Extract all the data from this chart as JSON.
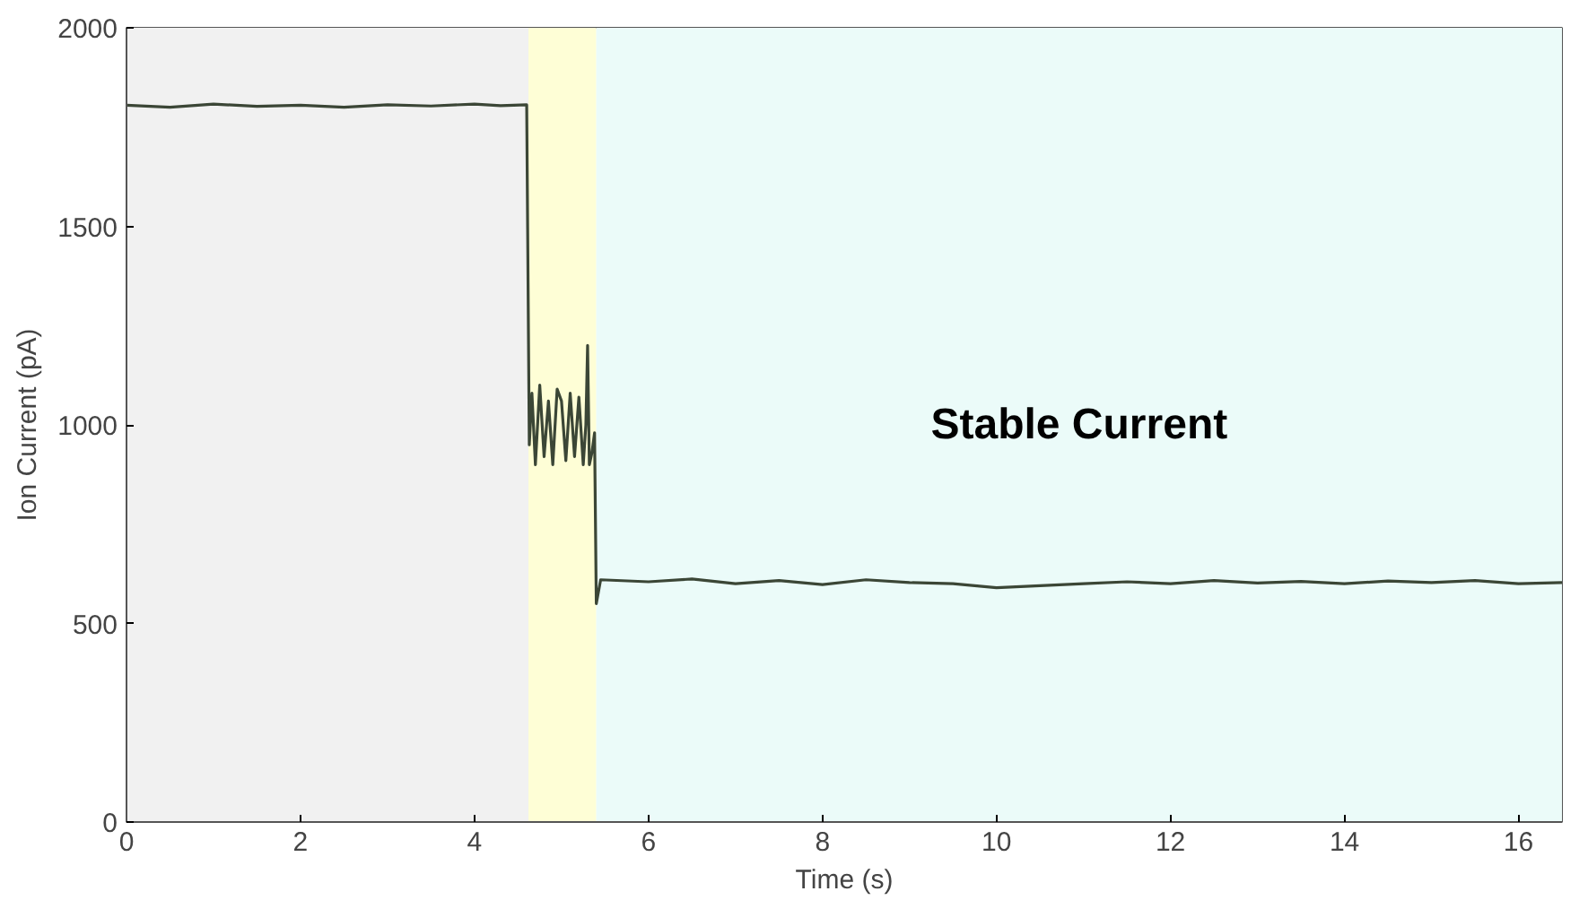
{
  "chart_data": {
    "type": "line",
    "xlabel": "Time (s)",
    "ylabel": "Ion Current (pA)",
    "xlim": [
      0,
      16.5
    ],
    "ylim": [
      0,
      2000
    ],
    "xticks": [
      0,
      2,
      4,
      6,
      8,
      10,
      12,
      14,
      16
    ],
    "yticks": [
      0,
      500,
      1000,
      1500,
      2000
    ],
    "grid": false,
    "bands": [
      {
        "axis": "x",
        "from": 0,
        "to": 4.62,
        "label": null,
        "color": "#f1f1f1"
      },
      {
        "axis": "x",
        "from": 4.62,
        "to": 5.4,
        "label": null,
        "color": "#fefed6"
      },
      {
        "axis": "x",
        "from": 5.4,
        "to": 16.5,
        "label": "Stable Current",
        "color": "#ebfbf9"
      }
    ],
    "series": [
      {
        "color": "#3b4636",
        "x": [
          0,
          0.5,
          1,
          1.5,
          2,
          2.5,
          3,
          3.5,
          4,
          4.3,
          4.6,
          4.63,
          4.66,
          4.7,
          4.75,
          4.8,
          4.85,
          4.9,
          4.95,
          5.0,
          5.05,
          5.1,
          5.15,
          5.2,
          5.25,
          5.28,
          5.3,
          5.32,
          5.35,
          5.38,
          5.4,
          5.45,
          6,
          6.5,
          7,
          7.5,
          8,
          8.5,
          9,
          9.5,
          10,
          10.5,
          11,
          11.5,
          12,
          12.5,
          13,
          13.5,
          14,
          14.5,
          15,
          15.5,
          16,
          16.5
        ],
        "values": [
          1805,
          1800,
          1808,
          1802,
          1805,
          1800,
          1806,
          1803,
          1808,
          1804,
          1806,
          950,
          1080,
          900,
          1100,
          920,
          1060,
          900,
          1090,
          1060,
          910,
          1080,
          920,
          1070,
          900,
          1000,
          1200,
          900,
          930,
          980,
          550,
          610,
          605,
          612,
          600,
          608,
          598,
          610,
          603,
          600,
          590,
          595,
          600,
          605,
          600,
          608,
          602,
          606,
          600,
          607,
          603,
          608,
          600,
          603
        ]
      }
    ]
  }
}
